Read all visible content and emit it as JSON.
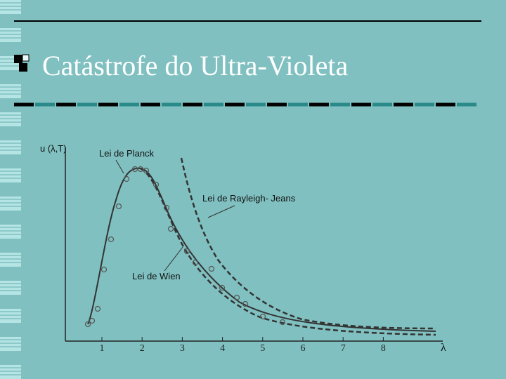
{
  "slide": {
    "title": "Catástrofe do Ultra-Violeta",
    "figure": {
      "y_label": "u (λ,T)",
      "x_label": "λ",
      "x_tick_labels": [
        "1",
        "2",
        "3",
        "4",
        "5",
        "6",
        "7",
        "8"
      ],
      "annotations": [
        "Lei de Planck",
        "Lei de Rayleigh- Jeans",
        "Lei de Wien"
      ]
    }
  }
}
